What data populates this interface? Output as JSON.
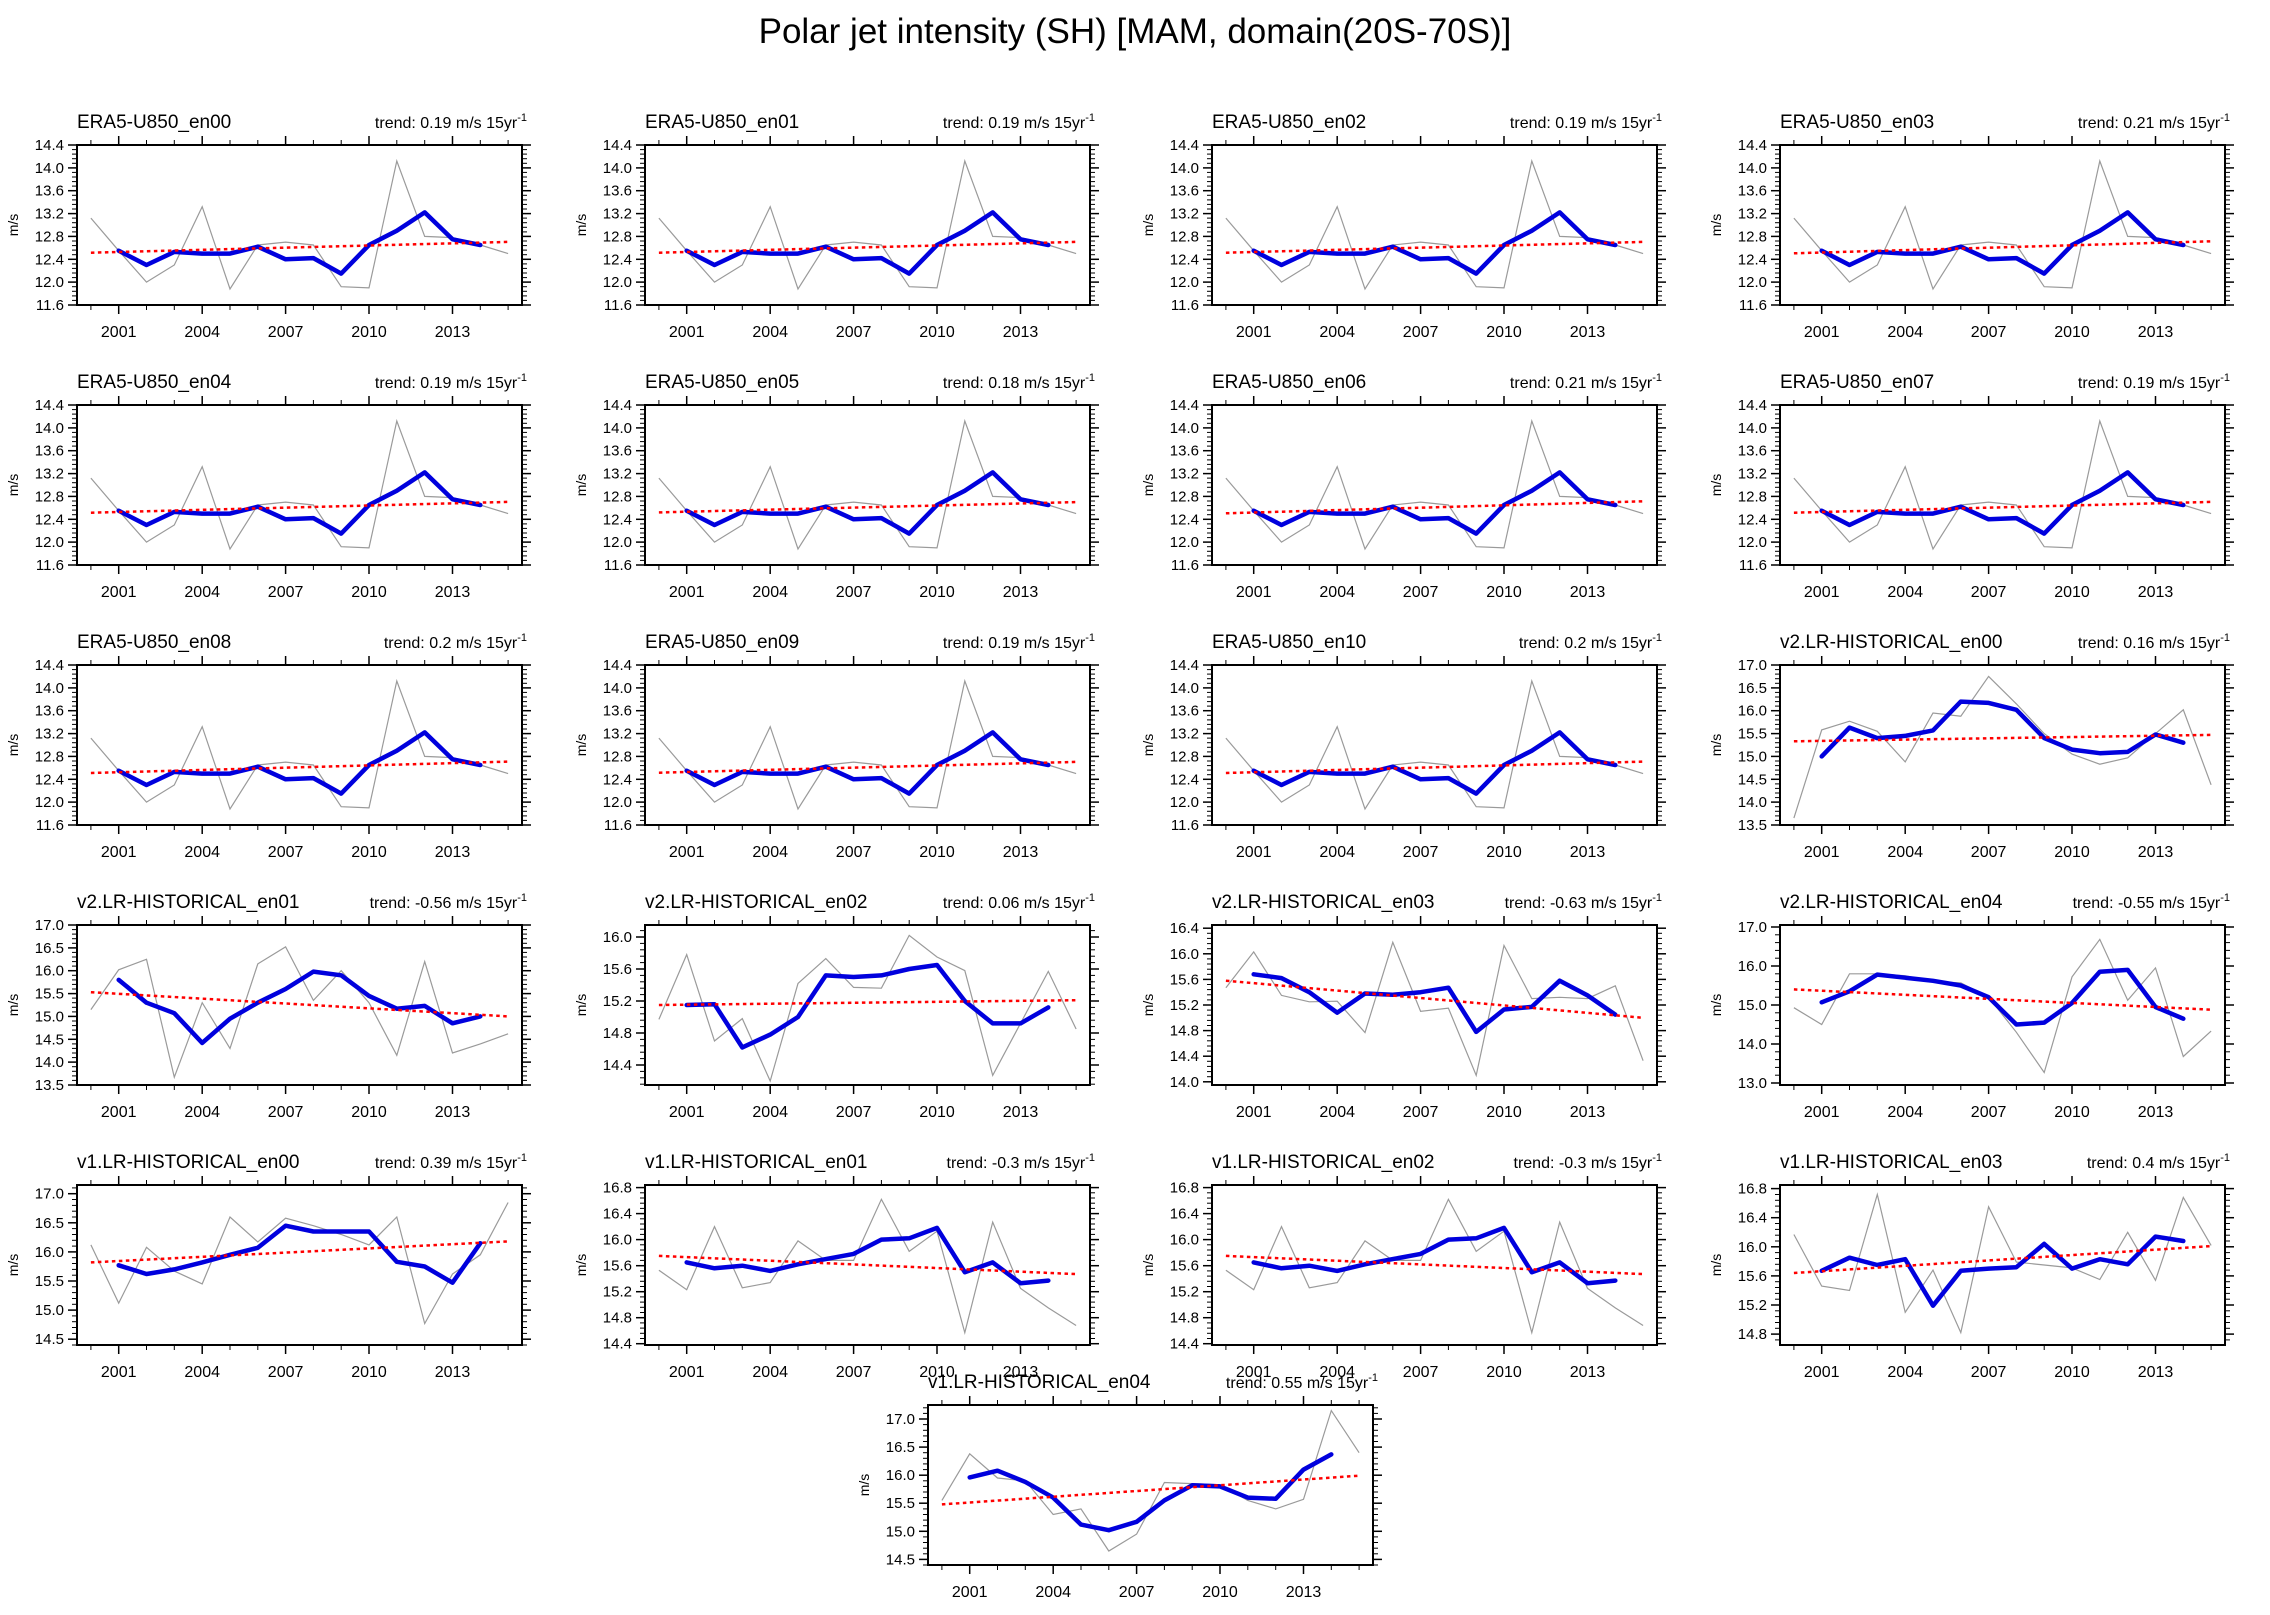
{
  "figure": {
    "title": "Polar jet intensity (SH) [MAM, domain(20S-70S)]",
    "ylabel": "m/s",
    "trend_prefix": "trend: ",
    "trend_unit": " m/s 15yr",
    "trend_sup": "-1"
  },
  "colors": {
    "raw_line": "#9a9a9a",
    "smooth_line": "#0000dd",
    "trend_line": "#ff0000",
    "axis": "#000000"
  },
  "x_axis": {
    "xlim": [
      1999.5,
      2015.5
    ],
    "raw_start_year": 2000,
    "smooth_start_year": 2001,
    "major_ticks": [
      2001,
      2004,
      2007,
      2010,
      2013
    ],
    "minor_step_years": 1
  },
  "shared_series": {
    "era5": {
      "raw": [
        13.12,
        12.55,
        12.0,
        12.3,
        13.32,
        11.88,
        12.65,
        12.7,
        12.65,
        11.92,
        11.9,
        14.12,
        12.8,
        12.78,
        12.65,
        12.5
      ],
      "smooth": [
        12.55,
        12.3,
        12.53,
        12.5,
        12.5,
        12.62,
        12.4,
        12.42,
        12.15,
        12.65,
        12.9,
        13.22,
        12.75,
        12.65
      ]
    },
    "v1e12": {
      "raw": [
        15.53,
        15.23,
        16.2,
        15.26,
        15.34,
        15.98,
        15.68,
        15.68,
        16.62,
        15.82,
        16.13,
        14.57,
        16.27,
        15.25,
        14.95,
        14.68
      ],
      "smooth": [
        15.65,
        15.56,
        15.6,
        15.52,
        15.62,
        15.7,
        15.78,
        16.0,
        16.02,
        16.18,
        15.5,
        15.65,
        15.33,
        15.37
      ]
    }
  },
  "chart_data": [
    {
      "type": "line",
      "title": "ERA5-U850_en00",
      "trend": "0.19",
      "row": 0,
      "col": 0,
      "ylim": [
        11.6,
        14.4
      ],
      "yticks": [
        11.6,
        12.0,
        12.4,
        12.8,
        13.2,
        13.6,
        14.0,
        14.4
      ],
      "series": "era5",
      "trendline": [
        12.515,
        12.705
      ]
    },
    {
      "type": "line",
      "title": "ERA5-U850_en01",
      "trend": "0.19",
      "row": 0,
      "col": 1,
      "ylim": [
        11.6,
        14.4
      ],
      "yticks": [
        11.6,
        12.0,
        12.4,
        12.8,
        13.2,
        13.6,
        14.0,
        14.4
      ],
      "series": "era5",
      "trendline": [
        12.515,
        12.705
      ]
    },
    {
      "type": "line",
      "title": "ERA5-U850_en02",
      "trend": "0.19",
      "row": 0,
      "col": 2,
      "ylim": [
        11.6,
        14.4
      ],
      "yticks": [
        11.6,
        12.0,
        12.4,
        12.8,
        13.2,
        13.6,
        14.0,
        14.4
      ],
      "series": "era5",
      "trendline": [
        12.515,
        12.705
      ]
    },
    {
      "type": "line",
      "title": "ERA5-U850_en03",
      "trend": "0.21",
      "row": 0,
      "col": 3,
      "ylim": [
        11.6,
        14.4
      ],
      "yticks": [
        11.6,
        12.0,
        12.4,
        12.8,
        13.2,
        13.6,
        14.0,
        14.4
      ],
      "series": "era5",
      "trendline": [
        12.505,
        12.715
      ]
    },
    {
      "type": "line",
      "title": "ERA5-U850_en04",
      "trend": "0.19",
      "row": 1,
      "col": 0,
      "ylim": [
        11.6,
        14.4
      ],
      "yticks": [
        11.6,
        12.0,
        12.4,
        12.8,
        13.2,
        13.6,
        14.0,
        14.4
      ],
      "series": "era5",
      "trendline": [
        12.515,
        12.705
      ]
    },
    {
      "type": "line",
      "title": "ERA5-U850_en05",
      "trend": "0.18",
      "row": 1,
      "col": 1,
      "ylim": [
        11.6,
        14.4
      ],
      "yticks": [
        11.6,
        12.0,
        12.4,
        12.8,
        13.2,
        13.6,
        14.0,
        14.4
      ],
      "series": "era5",
      "trendline": [
        12.52,
        12.7
      ]
    },
    {
      "type": "line",
      "title": "ERA5-U850_en06",
      "trend": "0.21",
      "row": 1,
      "col": 2,
      "ylim": [
        11.6,
        14.4
      ],
      "yticks": [
        11.6,
        12.0,
        12.4,
        12.8,
        13.2,
        13.6,
        14.0,
        14.4
      ],
      "series": "era5",
      "trendline": [
        12.505,
        12.715
      ]
    },
    {
      "type": "line",
      "title": "ERA5-U850_en07",
      "trend": "0.19",
      "row": 1,
      "col": 3,
      "ylim": [
        11.6,
        14.4
      ],
      "yticks": [
        11.6,
        12.0,
        12.4,
        12.8,
        13.2,
        13.6,
        14.0,
        14.4
      ],
      "series": "era5",
      "trendline": [
        12.515,
        12.705
      ]
    },
    {
      "type": "line",
      "title": "ERA5-U850_en08",
      "trend": "0.2",
      "row": 2,
      "col": 0,
      "ylim": [
        11.6,
        14.4
      ],
      "yticks": [
        11.6,
        12.0,
        12.4,
        12.8,
        13.2,
        13.6,
        14.0,
        14.4
      ],
      "series": "era5",
      "trendline": [
        12.51,
        12.71
      ]
    },
    {
      "type": "line",
      "title": "ERA5-U850_en09",
      "trend": "0.19",
      "row": 2,
      "col": 1,
      "ylim": [
        11.6,
        14.4
      ],
      "yticks": [
        11.6,
        12.0,
        12.4,
        12.8,
        13.2,
        13.6,
        14.0,
        14.4
      ],
      "series": "era5",
      "trendline": [
        12.515,
        12.705
      ]
    },
    {
      "type": "line",
      "title": "ERA5-U850_en10",
      "trend": "0.2",
      "row": 2,
      "col": 2,
      "ylim": [
        11.6,
        14.4
      ],
      "yticks": [
        11.6,
        12.0,
        12.4,
        12.8,
        13.2,
        13.6,
        14.0,
        14.4
      ],
      "series": "era5",
      "trendline": [
        12.51,
        12.71
      ]
    },
    {
      "type": "line",
      "title": "v2.LR-HISTORICAL_en00",
      "trend": "0.16",
      "row": 2,
      "col": 3,
      "ylim": [
        13.5,
        17.0
      ],
      "yticks": [
        13.5,
        14.0,
        14.5,
        15.0,
        15.5,
        16.0,
        16.5,
        17.0
      ],
      "raw": [
        13.65,
        15.58,
        15.77,
        15.55,
        14.88,
        15.95,
        15.88,
        16.75,
        16.15,
        15.5,
        15.05,
        14.83,
        14.97,
        15.5,
        16.02,
        14.38
      ],
      "smooth": [
        15.0,
        15.63,
        15.4,
        15.45,
        15.57,
        16.2,
        16.17,
        16.02,
        15.4,
        15.15,
        15.07,
        15.1,
        15.48,
        15.3
      ],
      "trendline": [
        15.33,
        15.47
      ]
    },
    {
      "type": "line",
      "title": "v2.LR-HISTORICAL_en01",
      "trend": "-0.56",
      "row": 3,
      "col": 0,
      "ylim": [
        13.5,
        17.0
      ],
      "yticks": [
        13.5,
        14.0,
        14.5,
        15.0,
        15.5,
        16.0,
        16.5,
        17.0
      ],
      "raw": [
        15.15,
        16.02,
        16.25,
        13.67,
        15.3,
        14.3,
        16.15,
        16.52,
        15.35,
        16.0,
        15.3,
        14.15,
        16.2,
        14.2,
        14.4,
        14.62
      ],
      "smooth": [
        15.8,
        15.3,
        15.07,
        14.42,
        14.95,
        15.3,
        15.6,
        15.98,
        15.9,
        15.45,
        15.17,
        15.23,
        14.85,
        15.0
      ],
      "trendline": [
        15.53,
        15.0
      ]
    },
    {
      "type": "line",
      "title": "v2.LR-HISTORICAL_en02",
      "trend": "0.06",
      "row": 3,
      "col": 1,
      "ylim": [
        14.15,
        16.15
      ],
      "yticks": [
        14.4,
        14.8,
        15.2,
        15.6,
        16.0
      ],
      "raw": [
        14.97,
        15.78,
        14.7,
        14.98,
        14.2,
        15.42,
        15.73,
        15.37,
        15.36,
        16.02,
        15.75,
        15.58,
        14.27,
        14.92,
        15.57,
        14.85
      ],
      "smooth": [
        15.15,
        15.16,
        14.62,
        14.78,
        15.0,
        15.52,
        15.5,
        15.52,
        15.6,
        15.65,
        15.2,
        14.92,
        14.92,
        15.12
      ],
      "trendline": [
        15.15,
        15.21
      ]
    },
    {
      "type": "line",
      "title": "v2.LR-HISTORICAL_en03",
      "trend": "-0.63",
      "row": 3,
      "col": 2,
      "ylim": [
        13.95,
        16.45
      ],
      "yticks": [
        14.0,
        14.4,
        14.8,
        15.2,
        15.6,
        16.0,
        16.4
      ],
      "raw": [
        15.47,
        16.03,
        15.35,
        15.25,
        15.26,
        14.77,
        16.18,
        15.1,
        15.15,
        14.1,
        16.13,
        15.3,
        15.32,
        15.3,
        15.5,
        14.33
      ],
      "smooth": [
        15.68,
        15.62,
        15.4,
        15.08,
        15.38,
        15.36,
        15.4,
        15.47,
        14.78,
        15.13,
        15.17,
        15.58,
        15.35,
        15.05
      ],
      "trendline": [
        15.58,
        15.0
      ]
    },
    {
      "type": "line",
      "title": "v2.LR-HISTORICAL_en04",
      "trend": "-0.55",
      "row": 3,
      "col": 3,
      "ylim": [
        12.95,
        17.05
      ],
      "yticks": [
        13.0,
        14.0,
        15.0,
        16.0,
        17.0
      ],
      "raw": [
        14.93,
        14.5,
        15.8,
        15.8,
        15.75,
        15.6,
        15.57,
        15.2,
        14.3,
        13.27,
        15.72,
        16.68,
        15.12,
        15.95,
        13.68,
        14.33
      ],
      "smooth": [
        15.07,
        15.35,
        15.78,
        15.7,
        15.62,
        15.5,
        15.2,
        14.5,
        14.55,
        15.05,
        15.85,
        15.9,
        14.95,
        14.65
      ],
      "trendline": [
        15.4,
        14.88
      ]
    },
    {
      "type": "line",
      "title": "v1.LR-HISTORICAL_en00",
      "trend": "0.39",
      "row": 4,
      "col": 0,
      "ylim": [
        14.4,
        17.15
      ],
      "yticks": [
        14.5,
        15.0,
        15.5,
        16.0,
        16.5,
        17.0
      ],
      "raw": [
        16.12,
        15.12,
        16.08,
        15.67,
        15.45,
        16.6,
        16.17,
        16.58,
        16.45,
        16.3,
        16.12,
        16.6,
        14.77,
        15.62,
        15.95,
        16.85
      ],
      "smooth": [
        15.77,
        15.62,
        15.7,
        15.82,
        15.95,
        16.07,
        16.45,
        16.35,
        16.35,
        16.35,
        15.83,
        15.75,
        15.47,
        16.15
      ],
      "trendline": [
        15.82,
        16.18
      ]
    },
    {
      "type": "line",
      "title": "v1.LR-HISTORICAL_en01",
      "trend": "-0.3",
      "row": 4,
      "col": 1,
      "ylim": [
        14.38,
        16.84
      ],
      "yticks": [
        14.4,
        14.8,
        15.2,
        15.6,
        16.0,
        16.4,
        16.8
      ],
      "series": "v1e12",
      "trendline": [
        15.75,
        15.47
      ]
    },
    {
      "type": "line",
      "title": "v1.LR-HISTORICAL_en02",
      "trend": "-0.3",
      "row": 4,
      "col": 2,
      "ylim": [
        14.38,
        16.84
      ],
      "yticks": [
        14.4,
        14.8,
        15.2,
        15.6,
        16.0,
        16.4,
        16.8
      ],
      "series": "v1e12",
      "trendline": [
        15.75,
        15.47
      ]
    },
    {
      "type": "line",
      "title": "v1.LR-HISTORICAL_en03",
      "trend": "0.4",
      "row": 4,
      "col": 3,
      "ylim": [
        14.65,
        16.85
      ],
      "yticks": [
        14.8,
        15.2,
        15.6,
        16.0,
        16.4,
        16.8
      ],
      "raw": [
        16.17,
        15.46,
        15.4,
        16.72,
        15.1,
        15.68,
        14.82,
        16.55,
        15.79,
        15.75,
        15.71,
        15.55,
        16.2,
        15.54,
        16.68,
        16.02
      ],
      "smooth": [
        15.67,
        15.85,
        15.75,
        15.83,
        15.19,
        15.67,
        15.7,
        15.72,
        16.04,
        15.7,
        15.83,
        15.76,
        16.14,
        16.08
      ],
      "trendline": [
        15.64,
        16.01
      ]
    },
    {
      "type": "line",
      "title": "v1.LR-HISTORICAL_en04",
      "trend": "0.55",
      "row": 5,
      "col": "center",
      "ylim": [
        14.4,
        17.25
      ],
      "yticks": [
        14.5,
        15.0,
        15.5,
        16.0,
        16.5,
        17.0
      ],
      "raw": [
        15.55,
        16.38,
        15.95,
        15.9,
        15.3,
        15.4,
        14.65,
        14.95,
        15.87,
        15.85,
        15.83,
        15.55,
        15.4,
        15.57,
        17.15,
        16.4
      ],
      "smooth": [
        15.96,
        16.08,
        15.88,
        15.6,
        15.12,
        15.02,
        15.17,
        15.55,
        15.82,
        15.8,
        15.6,
        15.58,
        16.1,
        16.37
      ],
      "trendline": [
        15.48,
        15.99
      ]
    }
  ]
}
